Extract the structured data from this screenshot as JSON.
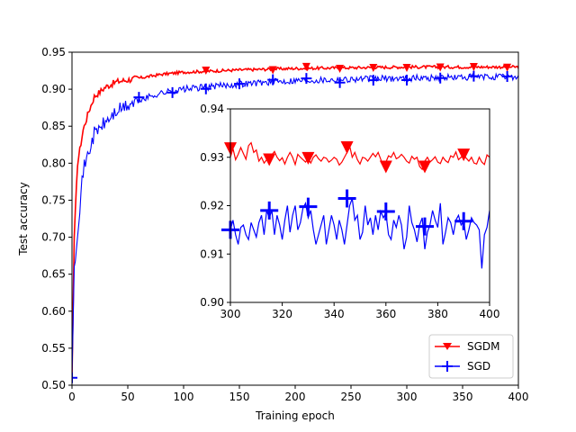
{
  "chart_data": [
    {
      "type": "line",
      "role": "main",
      "xlabel": "Training epoch",
      "ylabel": "Test accuracy",
      "xlim": [
        0,
        400
      ],
      "ylim": [
        0.5,
        0.95
      ],
      "xticks": [
        "0",
        "50",
        "100",
        "150",
        "200",
        "250",
        "300",
        "350",
        "400"
      ],
      "yticks": [
        "0.50",
        "0.55",
        "0.60",
        "0.65",
        "0.70",
        "0.75",
        "0.80",
        "0.85",
        "0.90",
        "0.95"
      ],
      "legend": {
        "position": "lower-right",
        "entries": [
          "SGDM",
          "SGD"
        ]
      },
      "series": [
        {
          "name": "SGDM",
          "color": "#ff0000",
          "marker": "triangle-down",
          "markers_at": [
            120,
            180,
            210,
            240,
            270,
            300,
            330,
            360,
            390
          ],
          "anchors": [
            [
              0,
              0.51
            ],
            [
              2,
              0.7
            ],
            [
              5,
              0.8
            ],
            [
              10,
              0.845
            ],
            [
              15,
              0.87
            ],
            [
              20,
              0.89
            ],
            [
              30,
              0.903
            ],
            [
              40,
              0.91
            ],
            [
              60,
              0.915
            ],
            [
              80,
              0.92
            ],
            [
              100,
              0.923
            ],
            [
              150,
              0.926
            ],
            [
              200,
              0.928
            ],
            [
              300,
              0.93
            ],
            [
              400,
              0.93
            ]
          ],
          "noise": 0.004
        },
        {
          "name": "SGD",
          "color": "#0000ff",
          "marker": "plus",
          "markers_at": [
            0,
            60,
            90,
            120,
            150,
            180,
            210,
            240,
            270,
            300,
            330,
            360,
            390
          ],
          "anchors": [
            [
              0,
              0.51
            ],
            [
              2,
              0.66
            ],
            [
              5,
              0.71
            ],
            [
              10,
              0.79
            ],
            [
              20,
              0.84
            ],
            [
              30,
              0.855
            ],
            [
              40,
              0.87
            ],
            [
              60,
              0.885
            ],
            [
              80,
              0.895
            ],
            [
              100,
              0.9
            ],
            [
              150,
              0.907
            ],
            [
              200,
              0.912
            ],
            [
              300,
              0.915
            ],
            [
              400,
              0.917
            ]
          ],
          "noise": 0.009
        }
      ]
    },
    {
      "type": "line",
      "role": "inset",
      "xlim": [
        300,
        400
      ],
      "ylim": [
        0.9,
        0.94
      ],
      "xticks": [
        "300",
        "320",
        "340",
        "360",
        "380",
        "400"
      ],
      "yticks": [
        "0.90",
        "0.91",
        "0.92",
        "0.93",
        "0.94"
      ],
      "series": [
        {
          "name": "SGDM",
          "color": "#ff0000",
          "marker": "triangle-down",
          "markers": [
            [
              300,
              0.9318
            ],
            [
              315,
              0.9295
            ],
            [
              330,
              0.9298
            ],
            [
              345,
              0.932
            ],
            [
              360,
              0.928
            ],
            [
              375,
              0.928
            ],
            [
              390,
              0.9305
            ]
          ],
          "values": [
            0.93,
            0.9318,
            0.9295,
            0.9306,
            0.932,
            0.9308,
            0.9296,
            0.9324,
            0.933,
            0.931,
            0.9315,
            0.9292,
            0.93,
            0.9288,
            0.9295,
            0.929,
            0.9305,
            0.9312,
            0.93,
            0.9293,
            0.9299,
            0.9286,
            0.93,
            0.931,
            0.93,
            0.9285,
            0.9306,
            0.93,
            0.9295,
            0.929,
            0.9298,
            0.9288,
            0.93,
            0.9305,
            0.9297,
            0.9292,
            0.93,
            0.9298,
            0.929,
            0.9294,
            0.93,
            0.9296,
            0.9284,
            0.929,
            0.93,
            0.931,
            0.9324,
            0.93,
            0.931,
            0.9295,
            0.9286,
            0.93,
            0.9298,
            0.9292,
            0.93,
            0.9308,
            0.9301,
            0.931,
            0.9296,
            0.9281,
            0.929,
            0.9303,
            0.93,
            0.931,
            0.9297,
            0.93,
            0.9306,
            0.93,
            0.9292,
            0.9288,
            0.9302,
            0.9296,
            0.93,
            0.9281,
            0.9275,
            0.9292,
            0.93,
            0.929,
            0.9295,
            0.9301,
            0.929,
            0.9287,
            0.93,
            0.9293,
            0.9289,
            0.9303,
            0.93,
            0.9311,
            0.9295,
            0.93,
            0.9305,
            0.9298,
            0.9292,
            0.93,
            0.9288,
            0.9286,
            0.93,
            0.929,
            0.9285,
            0.9305,
            0.93
          ]
        },
        {
          "name": "SGD",
          "color": "#0000ff",
          "marker": "plus",
          "markers": [
            [
              300,
              0.915
            ],
            [
              315,
              0.919
            ],
            [
              330,
              0.9198
            ],
            [
              345,
              0.9215
            ],
            [
              360,
              0.9188
            ],
            [
              375,
              0.9157
            ],
            [
              390,
              0.9168
            ]
          ],
          "values": [
            0.915,
            0.917,
            0.914,
            0.912,
            0.9155,
            0.916,
            0.914,
            0.913,
            0.9165,
            0.915,
            0.9135,
            0.9165,
            0.918,
            0.914,
            0.919,
            0.9175,
            0.919,
            0.914,
            0.918,
            0.916,
            0.913,
            0.917,
            0.92,
            0.9145,
            0.918,
            0.92,
            0.915,
            0.9165,
            0.9195,
            0.9205,
            0.9175,
            0.919,
            0.915,
            0.912,
            0.914,
            0.916,
            0.918,
            0.912,
            0.915,
            0.918,
            0.916,
            0.913,
            0.917,
            0.915,
            0.912,
            0.916,
            0.92,
            0.9215,
            0.917,
            0.918,
            0.913,
            0.9145,
            0.92,
            0.916,
            0.9175,
            0.914,
            0.918,
            0.915,
            0.9188,
            0.9175,
            0.9185,
            0.914,
            0.913,
            0.917,
            0.9155,
            0.918,
            0.916,
            0.911,
            0.9135,
            0.92,
            0.9165,
            0.915,
            0.9125,
            0.916,
            0.9175,
            0.911,
            0.9145,
            0.916,
            0.919,
            0.917,
            0.9155,
            0.9205,
            0.912,
            0.9145,
            0.9175,
            0.9165,
            0.914,
            0.917,
            0.918,
            0.916,
            0.9168,
            0.913,
            0.915,
            0.9175,
            0.9165,
            0.916,
            0.915,
            0.907,
            0.914,
            0.9155,
            0.919
          ]
        }
      ]
    }
  ]
}
